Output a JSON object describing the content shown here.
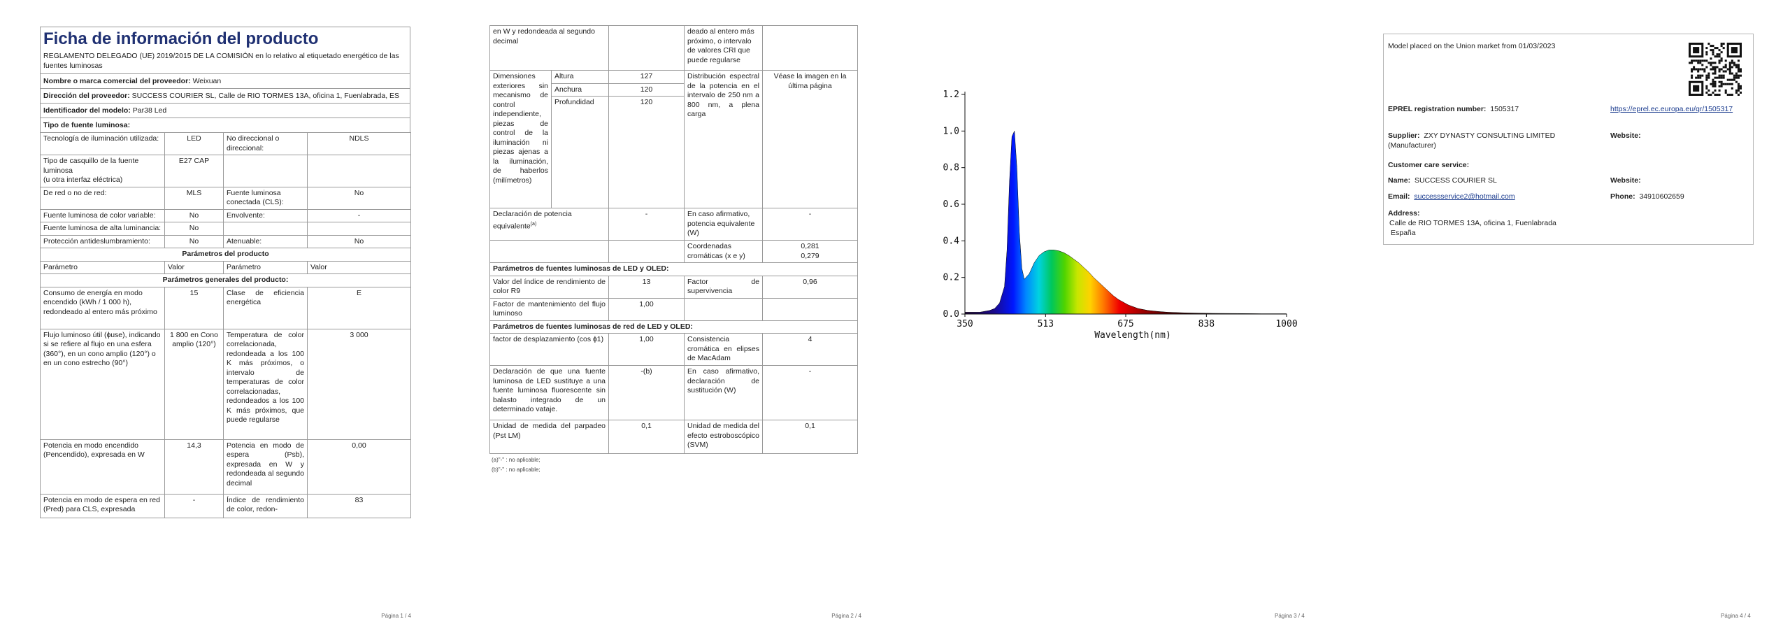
{
  "page1": {
    "title": "Ficha de información del producto",
    "regulation": "REGLAMENTO DELEGADO (UE) 2019/2015 DE LA COMISIÓN en lo relativo al etiquetado energético de las fuentes luminosas",
    "supplier_label": "Nombre o marca comercial del proveedor:",
    "supplier_value": "Weixuan",
    "address_label": "Dirección del proveedor:",
    "address_value": "SUCCESS COURIER SL, Calle de RIO TORMES 13A, oficina 1, Fuenlabrada, ES",
    "model_label": "Identificador del modelo:",
    "model_value": "Par38 Led",
    "type_label": "Tipo de fuente luminosa:",
    "type_rows": [
      [
        "Tecnología de iluminación utilizada:",
        "LED",
        "No direccional o direccional:",
        "NDLS"
      ],
      [
        "Tipo de casquillo de la fuente luminosa\n(u otra interfaz eléctrica)",
        "E27 CAP",
        "",
        ""
      ],
      [
        "De red o no de red:",
        "MLS",
        "Fuente luminosa conectada (CLS):",
        "No"
      ],
      [
        "Fuente luminosa de color variable:",
        "No",
        "Envolvente:",
        "-"
      ],
      [
        "Fuente luminosa de alta luminancia:",
        "No",
        "",
        ""
      ],
      [
        "Protección antideslumbramiento:",
        "No",
        "Atenuable:",
        "No"
      ]
    ],
    "params_title": "Parámetros del producto",
    "params_header": [
      "Parámetro",
      "Valor",
      "Parámetro",
      "Valor"
    ],
    "general_title": "Parámetros generales del producto:",
    "general_rows": [
      [
        "Consumo de energía en modo encendido (kWh / 1 000 h), redondeado al entero más próximo",
        "15",
        "Clase de eficiencia energética",
        "E"
      ],
      [
        "Flujo luminoso útil (ɸuse), indicando si se refiere al flujo en una esfera (360°), en un cono amplio (120°) o en un cono estrecho (90°)",
        "1 800 en Cono amplio (120°)",
        "Temperatura de color correlacionada, redondeada a los 100 K más próximos, o intervalo de temperaturas de color correlacionadas, redondeados a los 100 K más próximos, que puede regularse",
        "3 000"
      ],
      [
        "Potencia en modo encendido (Pencendido), expresada en W",
        "14,3",
        "Potencia en modo de espera (Psb), expresada en W y redondeada al segundo decimal",
        "0,00"
      ],
      [
        "Potencia en modo de espera en red (Pred) para CLS, expresada",
        "-",
        "Índice de rendimiento de color, redon-",
        "83"
      ]
    ],
    "footer": "Página 1 / 4"
  },
  "page2": {
    "top_row": [
      "en W y redondeada al segundo decimal",
      "",
      "deado al entero más próximo, o intervalo de valores CRI que puede regularse",
      ""
    ],
    "dims_label": "Dimensiones exteriores sin mecanismo de control independiente, piezas de control de la iluminación ni piezas ajenas a la iluminación, de haberlos (milímetros)",
    "dims": [
      [
        "Altura",
        "127"
      ],
      [
        "Anchura",
        "120"
      ],
      [
        "Profundidad",
        "120"
      ]
    ],
    "spectral_label": "Distribución espectral de la potencia en el intervalo de 250 nm a 800 nm, a plena carga",
    "spectral_value": "Véase la imagen en la última página",
    "equiv_label": "Declaración de potencia equivalente",
    "equiv_sup": "(a)",
    "equiv_value": "-",
    "equiv_label2": "En caso afirmativo, potencia equivalente (W)",
    "equiv_value2": "-",
    "chroma_label": "Coordenadas cromáticas (x e y)",
    "chroma_values": [
      "0,281",
      "0,279"
    ],
    "led_title": "Parámetros de fuentes luminosas de LED y OLED:",
    "led_rows": [
      [
        "Valor del índice de rendimiento de color R9",
        "13",
        "Factor de supervivencia",
        "0,96"
      ],
      [
        "Factor de mantenimiento del flujo luminoso",
        "1,00",
        "",
        ""
      ]
    ],
    "mains_title": "Parámetros de fuentes luminosas de red de LED y OLED:",
    "mains_rows": [
      [
        "factor de desplazamiento (cos ɸ1)",
        "1,00",
        "Consistencia cromática en elipses de MacAdam",
        "4"
      ],
      [
        "Declaración de que una fuente luminosa de LED sustituye a una fuente luminosa fluorescente sin balasto integrado de un determinado vataje.",
        "-(b)",
        "En caso afirmativo, declaración de sustitución (W)",
        "-"
      ],
      [
        "Unidad de medida del parpadeo (Pst LM)",
        "0,1",
        "Unidad de medida del efecto estroboscópico (SVM)",
        "0,1"
      ]
    ],
    "footnotes": [
      "(a)\"-\" : no aplicable;",
      "(b)\"-\" : no aplicable;"
    ],
    "footer": "Página 2 / 4"
  },
  "page3": {
    "xlabel": "Wavelength(nm)",
    "footer": "Página 3 / 4"
  },
  "chart_data": {
    "type": "line",
    "title": "",
    "xlabel": "Wavelength(nm)",
    "ylabel": "",
    "xlim": [
      350,
      1000
    ],
    "ylim": [
      0,
      1.2
    ],
    "xticks": [
      "350",
      "513",
      "675",
      "838",
      "1000"
    ],
    "yticks": [
      "0.0",
      "0.2",
      "0.4",
      "0.6",
      "0.8",
      "1.0",
      "1.2"
    ],
    "series": [
      {
        "x": [
          350,
          380,
          400,
          410,
          420,
          430,
          435,
          440,
          445,
          450,
          455,
          460,
          465,
          470,
          480,
          490,
          500,
          510,
          520,
          530,
          540,
          550,
          560,
          570,
          580,
          590,
          600,
          610,
          620,
          630,
          640,
          650,
          660,
          670,
          680,
          690,
          700,
          720,
          740,
          760,
          780,
          800,
          850,
          900,
          950,
          1000
        ],
        "y": [
          0.01,
          0.01,
          0.02,
          0.03,
          0.06,
          0.15,
          0.35,
          0.72,
          0.97,
          1.0,
          0.8,
          0.45,
          0.25,
          0.19,
          0.22,
          0.28,
          0.32,
          0.34,
          0.35,
          0.35,
          0.345,
          0.335,
          0.32,
          0.3,
          0.28,
          0.255,
          0.23,
          0.2,
          0.175,
          0.15,
          0.125,
          0.1,
          0.08,
          0.065,
          0.05,
          0.04,
          0.03,
          0.02,
          0.014,
          0.01,
          0.008,
          0.006,
          0.004,
          0.003,
          0.002,
          0.002
        ]
      }
    ],
    "grid": false,
    "fill": "visible spectrum gradient"
  },
  "page4": {
    "placed": "Model placed on the Union market from 01/03/2023",
    "eprel_label": "EPREL registration number:",
    "eprel_value": "1505317",
    "eprel_link": "https://eprel.ec.europa.eu/qr/1505317",
    "supplier_label": "Supplier:",
    "supplier_value": "ZXY DYNASTY CONSULTING LIMITED (Manufacturer)",
    "website_label": "Website:",
    "care_label": "Customer care service:",
    "name_label": "Name:",
    "name_value": "SUCCESS COURIER SL",
    "website2_label": "Website:",
    "email_label": "Email:",
    "email_value": "successservice2@hotmail.com",
    "phone_label": "Phone:",
    "phone_value": "34910602659",
    "address_label": "Address:",
    "address_line1": "Calle de RIO TORMES 13A, oficina 1, Fuenlabrada",
    "address_line2": "España",
    "footer": "Página 4 / 4"
  }
}
